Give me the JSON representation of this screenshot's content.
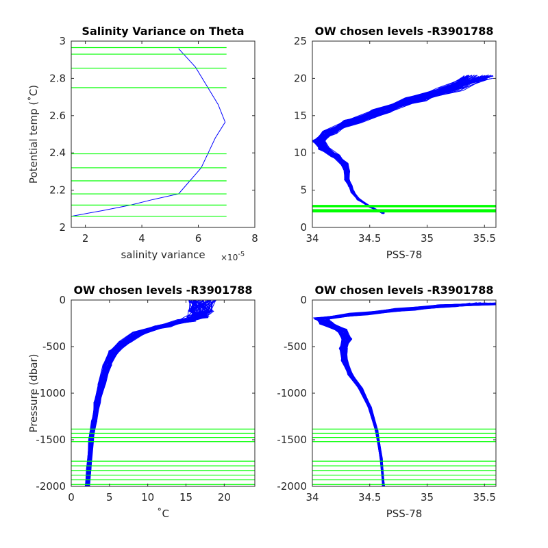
{
  "colors": {
    "profile": "#0000ff",
    "levels": "#00ff00",
    "axis": "#262626"
  },
  "chart_data": [
    {
      "type": "line",
      "title": "Salinity Variance on Theta",
      "xlabel": "salinity variance",
      "x_multiplier": "×10",
      "x_multiplier_exp": "-5",
      "ylabel": "Potential temp (˚C)",
      "xlim": [
        1.5,
        8
      ],
      "ylim": [
        2,
        3
      ],
      "xticks": [
        "2",
        "4",
        "6",
        "8"
      ],
      "xtick_values": [
        2,
        4,
        6,
        8
      ],
      "yticks": [
        "2",
        "2.2",
        "2.4",
        "2.6",
        "2.8",
        "3"
      ],
      "ytick_values": [
        2,
        2.2,
        2.4,
        2.6,
        2.8,
        3
      ],
      "series": [
        {
          "x": [
            1.5,
            2.6,
            3.6,
            4.4,
            5.3,
            5.7,
            6.1,
            6.35,
            6.6,
            6.95,
            6.7,
            6.3,
            5.9,
            5.3
          ],
          "y": [
            2.06,
            2.09,
            2.12,
            2.15,
            2.18,
            2.25,
            2.32,
            2.4,
            2.48,
            2.565,
            2.66,
            2.76,
            2.86,
            2.96
          ]
        }
      ],
      "hlines": [
        2.06,
        2.12,
        2.18,
        2.25,
        2.32,
        2.395,
        2.75,
        2.855,
        2.93,
        2.965
      ]
    },
    {
      "type": "line",
      "title": "OW chosen levels -R3901788",
      "xlabel": "PSS-78",
      "ylabel": "",
      "xlim": [
        34,
        35.6
      ],
      "ylim": [
        0,
        25
      ],
      "xticks": [
        "34",
        "34.5",
        "35",
        "35.5"
      ],
      "xtick_values": [
        34,
        34.5,
        35,
        35.5
      ],
      "yticks": [
        "0",
        "5",
        "10",
        "15",
        "20",
        "25"
      ],
      "ytick_values": [
        0,
        5,
        10,
        15,
        20,
        25
      ],
      "series": [
        {
          "x": [
            34.62,
            34.5,
            34.4,
            34.35,
            34.33,
            34.3,
            34.3,
            34.28,
            34.2,
            34.1,
            34.06,
            34.15,
            34.35,
            34.6,
            34.9,
            35.2,
            35.45
          ],
          "y": [
            1.9,
            2.8,
            3.8,
            4.8,
            5.6,
            6.5,
            7.5,
            8.5,
            9.6,
            10.6,
            11.6,
            12.8,
            14.2,
            15.6,
            17.2,
            18.6,
            20.2
          ]
        }
      ],
      "hlines": [
        2.06,
        2.12,
        2.18,
        2.25,
        2.32,
        2.395,
        2.75,
        2.855,
        2.93,
        2.965
      ]
    },
    {
      "type": "line",
      "title": "OW chosen levels -R3901788",
      "xlabel": "˚C",
      "ylabel": "Pressure (dbar)",
      "xlim": [
        0,
        24
      ],
      "ylim": [
        -2000,
        0
      ],
      "xticks": [
        "0",
        "5",
        "10",
        "15",
        "20"
      ],
      "xtick_values": [
        0,
        5,
        10,
        15,
        20
      ],
      "yticks": [
        "-2000",
        "-1500",
        "-1000",
        "-500",
        "0"
      ],
      "ytick_values": [
        -2000,
        -1500,
        -1000,
        -500,
        0
      ],
      "series": [
        {
          "x": [
            2.1,
            2.3,
            2.6,
            3.0,
            3.4,
            4.0,
            4.7,
            5.6,
            7.0,
            9.0,
            12.0,
            15.0,
            16.5,
            17.0,
            17.2
          ],
          "y": [
            -2000,
            -1800,
            -1500,
            -1300,
            -1100,
            -900,
            -700,
            -550,
            -450,
            -350,
            -280,
            -220,
            -180,
            -120,
            0
          ]
        }
      ],
      "hlines": [
        -1385,
        -1430,
        -1475,
        -1520,
        -1730,
        -1780,
        -1830,
        -1880,
        -1930,
        -1980
      ]
    },
    {
      "type": "line",
      "title": "OW chosen levels -R3901788",
      "xlabel": "PSS-78",
      "ylabel": "",
      "xlim": [
        34,
        35.6
      ],
      "ylim": [
        -2000,
        0
      ],
      "xticks": [
        "34",
        "34.5",
        "35",
        "35.5"
      ],
      "xtick_values": [
        34,
        34.5,
        35,
        35.5
      ],
      "yticks": [
        "-2000",
        "-1500",
        "-1000",
        "-500",
        "0"
      ],
      "ytick_values": [
        -2000,
        -1500,
        -1000,
        -500,
        0
      ],
      "series": [
        {
          "x": [
            34.62,
            34.6,
            34.56,
            34.5,
            34.42,
            34.33,
            34.28,
            34.27,
            34.3,
            34.25,
            34.12,
            34.08,
            34.4,
            34.8,
            35.2,
            35.5
          ],
          "y": [
            -2000,
            -1700,
            -1400,
            -1150,
            -950,
            -800,
            -650,
            -520,
            -420,
            -320,
            -250,
            -200,
            -150,
            -100,
            -60,
            -40
          ]
        }
      ],
      "hlines": [
        -1385,
        -1430,
        -1475,
        -1520,
        -1730,
        -1780,
        -1830,
        -1880,
        -1930,
        -1980
      ]
    }
  ]
}
